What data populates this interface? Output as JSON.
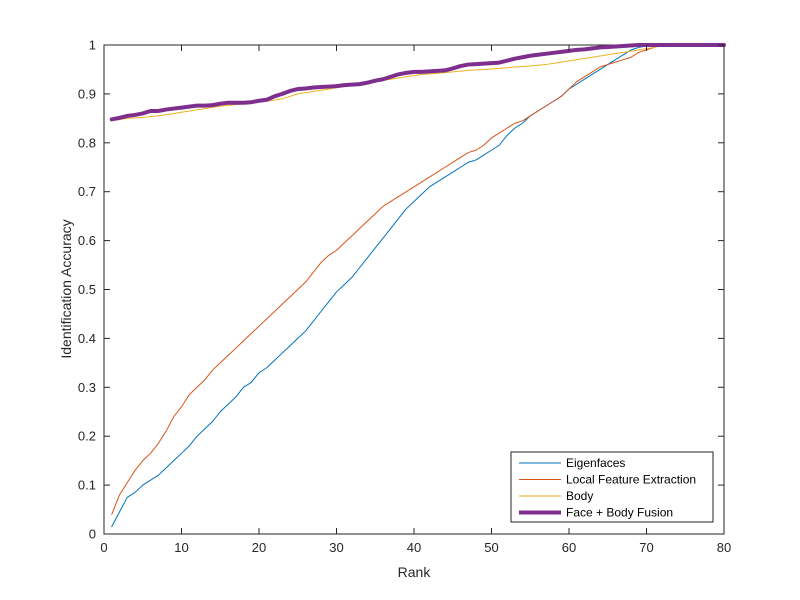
{
  "chart_data": {
    "type": "line",
    "title": "",
    "xlabel": "Rank",
    "ylabel": "Identification Accuracy",
    "xlim": [
      0,
      80
    ],
    "ylim": [
      0,
      1
    ],
    "xticks": [
      "0",
      "10",
      "20",
      "30",
      "40",
      "50",
      "60",
      "70",
      "80"
    ],
    "yticks": [
      "0",
      "0.1",
      "0.2",
      "0.3",
      "0.4",
      "0.5",
      "0.6",
      "0.7",
      "0.8",
      "0.9",
      "1"
    ],
    "grid": false,
    "legend_position": "bottom-right",
    "series": [
      {
        "name": "Eigenfaces",
        "color": "#0072BD",
        "style": "thin",
        "points": [
          [
            1,
            0.015
          ],
          [
            2,
            0.045
          ],
          [
            3,
            0.075
          ],
          [
            4,
            0.085
          ],
          [
            5,
            0.1
          ],
          [
            6,
            0.11
          ],
          [
            7,
            0.12
          ],
          [
            8,
            0.135
          ],
          [
            9,
            0.15
          ],
          [
            10,
            0.165
          ],
          [
            11,
            0.18
          ],
          [
            12,
            0.2
          ],
          [
            13,
            0.215
          ],
          [
            14,
            0.23
          ],
          [
            15,
            0.25
          ],
          [
            16,
            0.265
          ],
          [
            17,
            0.28
          ],
          [
            18,
            0.3
          ],
          [
            19,
            0.31
          ],
          [
            20,
            0.33
          ],
          [
            21,
            0.34
          ],
          [
            22,
            0.355
          ],
          [
            23,
            0.37
          ],
          [
            24,
            0.385
          ],
          [
            25,
            0.4
          ],
          [
            26,
            0.415
          ],
          [
            27,
            0.435
          ],
          [
            28,
            0.455
          ],
          [
            29,
            0.475
          ],
          [
            30,
            0.495
          ],
          [
            31,
            0.51
          ],
          [
            32,
            0.525
          ],
          [
            33,
            0.545
          ],
          [
            34,
            0.565
          ],
          [
            35,
            0.585
          ],
          [
            36,
            0.605
          ],
          [
            37,
            0.625
          ],
          [
            38,
            0.645
          ],
          [
            39,
            0.665
          ],
          [
            40,
            0.68
          ],
          [
            41,
            0.695
          ],
          [
            42,
            0.71
          ],
          [
            43,
            0.72
          ],
          [
            44,
            0.73
          ],
          [
            45,
            0.74
          ],
          [
            46,
            0.75
          ],
          [
            47,
            0.76
          ],
          [
            48,
            0.765
          ],
          [
            49,
            0.775
          ],
          [
            50,
            0.785
          ],
          [
            51,
            0.795
          ],
          [
            52,
            0.815
          ],
          [
            53,
            0.83
          ],
          [
            54,
            0.84
          ],
          [
            55,
            0.855
          ],
          [
            56,
            0.865
          ],
          [
            57,
            0.875
          ],
          [
            58,
            0.885
          ],
          [
            59,
            0.895
          ],
          [
            60,
            0.91
          ],
          [
            61,
            0.92
          ],
          [
            62,
            0.93
          ],
          [
            63,
            0.94
          ],
          [
            64,
            0.95
          ],
          [
            65,
            0.96
          ],
          [
            66,
            0.97
          ],
          [
            67,
            0.98
          ],
          [
            68,
            0.99
          ],
          [
            69,
            0.995
          ],
          [
            70,
            0.998
          ],
          [
            71,
            1.0
          ],
          [
            80,
            1.0
          ]
        ]
      },
      {
        "name": "Local Feature Extraction",
        "color": "#D95319",
        "style": "thin",
        "points": [
          [
            1,
            0.04
          ],
          [
            2,
            0.08
          ],
          [
            3,
            0.105
          ],
          [
            4,
            0.13
          ],
          [
            5,
            0.15
          ],
          [
            6,
            0.165
          ],
          [
            7,
            0.185
          ],
          [
            8,
            0.21
          ],
          [
            9,
            0.24
          ],
          [
            10,
            0.26
          ],
          [
            11,
            0.285
          ],
          [
            12,
            0.3
          ],
          [
            13,
            0.315
          ],
          [
            14,
            0.335
          ],
          [
            15,
            0.35
          ],
          [
            16,
            0.365
          ],
          [
            17,
            0.38
          ],
          [
            18,
            0.395
          ],
          [
            19,
            0.41
          ],
          [
            20,
            0.425
          ],
          [
            21,
            0.44
          ],
          [
            22,
            0.455
          ],
          [
            23,
            0.47
          ],
          [
            24,
            0.485
          ],
          [
            25,
            0.5
          ],
          [
            26,
            0.515
          ],
          [
            27,
            0.535
          ],
          [
            28,
            0.555
          ],
          [
            29,
            0.57
          ],
          [
            30,
            0.58
          ],
          [
            31,
            0.595
          ],
          [
            32,
            0.61
          ],
          [
            33,
            0.625
          ],
          [
            34,
            0.64
          ],
          [
            35,
            0.655
          ],
          [
            36,
            0.67
          ],
          [
            37,
            0.68
          ],
          [
            38,
            0.69
          ],
          [
            39,
            0.7
          ],
          [
            40,
            0.71
          ],
          [
            41,
            0.72
          ],
          [
            42,
            0.73
          ],
          [
            43,
            0.74
          ],
          [
            44,
            0.75
          ],
          [
            45,
            0.76
          ],
          [
            46,
            0.77
          ],
          [
            47,
            0.78
          ],
          [
            48,
            0.785
          ],
          [
            49,
            0.795
          ],
          [
            50,
            0.81
          ],
          [
            51,
            0.82
          ],
          [
            52,
            0.83
          ],
          [
            53,
            0.84
          ],
          [
            54,
            0.845
          ],
          [
            55,
            0.855
          ],
          [
            56,
            0.865
          ],
          [
            57,
            0.875
          ],
          [
            58,
            0.885
          ],
          [
            59,
            0.895
          ],
          [
            60,
            0.91
          ],
          [
            61,
            0.925
          ],
          [
            62,
            0.935
          ],
          [
            63,
            0.945
          ],
          [
            64,
            0.955
          ],
          [
            65,
            0.96
          ],
          [
            66,
            0.965
          ],
          [
            67,
            0.97
          ],
          [
            68,
            0.975
          ],
          [
            69,
            0.985
          ],
          [
            70,
            0.99
          ],
          [
            71,
            0.995
          ],
          [
            72,
            1.0
          ],
          [
            80,
            1.0
          ]
        ]
      },
      {
        "name": "Body",
        "color": "#EDB120",
        "style": "thin",
        "points": [
          [
            1,
            0.845
          ],
          [
            3,
            0.85
          ],
          [
            5,
            0.852
          ],
          [
            7,
            0.855
          ],
          [
            9,
            0.86
          ],
          [
            11,
            0.865
          ],
          [
            13,
            0.87
          ],
          [
            15,
            0.875
          ],
          [
            17,
            0.878
          ],
          [
            19,
            0.882
          ],
          [
            21,
            0.885
          ],
          [
            23,
            0.89
          ],
          [
            25,
            0.9
          ],
          [
            27,
            0.905
          ],
          [
            29,
            0.91
          ],
          [
            31,
            0.915
          ],
          [
            33,
            0.92
          ],
          [
            35,
            0.925
          ],
          [
            37,
            0.93
          ],
          [
            39,
            0.935
          ],
          [
            41,
            0.94
          ],
          [
            43,
            0.942
          ],
          [
            45,
            0.945
          ],
          [
            47,
            0.948
          ],
          [
            49,
            0.95
          ],
          [
            51,
            0.952
          ],
          [
            53,
            0.955
          ],
          [
            55,
            0.957
          ],
          [
            57,
            0.96
          ],
          [
            59,
            0.965
          ],
          [
            61,
            0.97
          ],
          [
            63,
            0.975
          ],
          [
            65,
            0.98
          ],
          [
            67,
            0.985
          ],
          [
            69,
            0.99
          ],
          [
            71,
            0.995
          ],
          [
            72,
            1.0
          ],
          [
            80,
            1.0
          ]
        ]
      },
      {
        "name": "Face + Body Fusion",
        "color": "#7E2F8E",
        "style": "thick",
        "points": [
          [
            1,
            0.848
          ],
          [
            2,
            0.851
          ],
          [
            3,
            0.855
          ],
          [
            4,
            0.857
          ],
          [
            5,
            0.86
          ],
          [
            6,
            0.865
          ],
          [
            7,
            0.865
          ],
          [
            8,
            0.868
          ],
          [
            9,
            0.87
          ],
          [
            10,
            0.872
          ],
          [
            11,
            0.874
          ],
          [
            12,
            0.876
          ],
          [
            13,
            0.876
          ],
          [
            14,
            0.877
          ],
          [
            15,
            0.88
          ],
          [
            16,
            0.882
          ],
          [
            17,
            0.882
          ],
          [
            18,
            0.882
          ],
          [
            19,
            0.883
          ],
          [
            20,
            0.886
          ],
          [
            21,
            0.888
          ],
          [
            22,
            0.895
          ],
          [
            23,
            0.9
          ],
          [
            24,
            0.906
          ],
          [
            25,
            0.91
          ],
          [
            26,
            0.911
          ],
          [
            27,
            0.913
          ],
          [
            28,
            0.914
          ],
          [
            29,
            0.915
          ],
          [
            30,
            0.916
          ],
          [
            31,
            0.918
          ],
          [
            32,
            0.919
          ],
          [
            33,
            0.92
          ],
          [
            34,
            0.923
          ],
          [
            35,
            0.927
          ],
          [
            36,
            0.93
          ],
          [
            37,
            0.935
          ],
          [
            38,
            0.94
          ],
          [
            39,
            0.943
          ],
          [
            40,
            0.945
          ],
          [
            41,
            0.945
          ],
          [
            42,
            0.946
          ],
          [
            43,
            0.947
          ],
          [
            44,
            0.948
          ],
          [
            45,
            0.952
          ],
          [
            46,
            0.957
          ],
          [
            47,
            0.96
          ],
          [
            48,
            0.961
          ],
          [
            49,
            0.962
          ],
          [
            50,
            0.963
          ],
          [
            51,
            0.964
          ],
          [
            52,
            0.968
          ],
          [
            53,
            0.972
          ],
          [
            54,
            0.975
          ],
          [
            55,
            0.978
          ],
          [
            56,
            0.98
          ],
          [
            57,
            0.982
          ],
          [
            58,
            0.984
          ],
          [
            59,
            0.986
          ],
          [
            60,
            0.988
          ],
          [
            61,
            0.99
          ],
          [
            62,
            0.991
          ],
          [
            63,
            0.993
          ],
          [
            64,
            0.995
          ],
          [
            65,
            0.996
          ],
          [
            66,
            0.997
          ],
          [
            67,
            0.998
          ],
          [
            68,
            0.999
          ],
          [
            69,
            1.0
          ],
          [
            80,
            1.0
          ]
        ]
      }
    ]
  }
}
